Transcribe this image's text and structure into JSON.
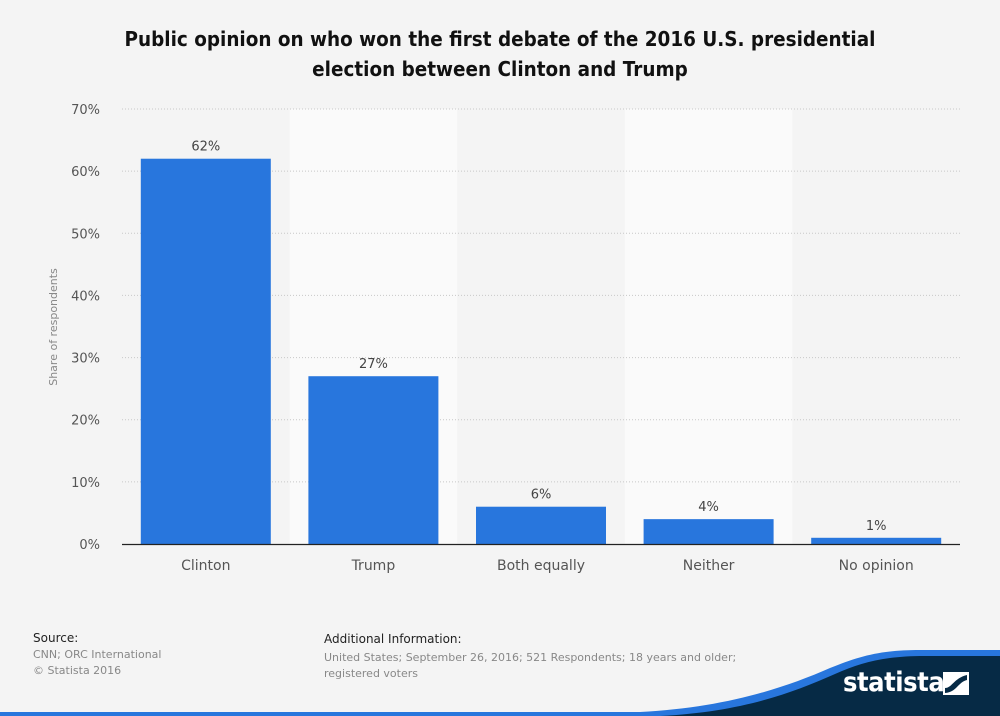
{
  "chart_data": {
    "type": "bar",
    "title": "Public opinion on who won the first debate of the 2016 U.S. presidential election between Clinton and Trump",
    "title_lines": [
      "Public opinion on who won the first debate of the 2016 U.S. presidential",
      "election between Clinton and Trump"
    ],
    "categories": [
      "Clinton",
      "Trump",
      "Both equally",
      "Neither",
      "No opinion"
    ],
    "values": [
      62,
      27,
      6,
      4,
      1
    ],
    "data_labels": [
      "62%",
      "27%",
      "6%",
      "4%",
      "1%"
    ],
    "xlabel": "",
    "ylabel": "Share of respondents",
    "ylim": [
      0,
      70
    ],
    "yticks": [
      0,
      10,
      20,
      30,
      40,
      50,
      60,
      70
    ],
    "ytick_labels": [
      "0%",
      "10%",
      "20%",
      "30%",
      "40%",
      "50%",
      "60%",
      "70%"
    ],
    "grid": true,
    "bar_color": "#2876dd"
  },
  "footer": {
    "source_heading": "Source:",
    "source_lines": [
      "CNN; ORC International",
      "© Statista 2016"
    ],
    "info_heading": "Additional Information:",
    "info_lines": [
      "United States; September 26, 2016; 521 Respondents; 18 years and older;",
      "registered voters"
    ],
    "brand": "statista"
  },
  "colors": {
    "accent": "#2876dd",
    "brand_dark": "#062a45",
    "background": "#f4f4f4"
  }
}
